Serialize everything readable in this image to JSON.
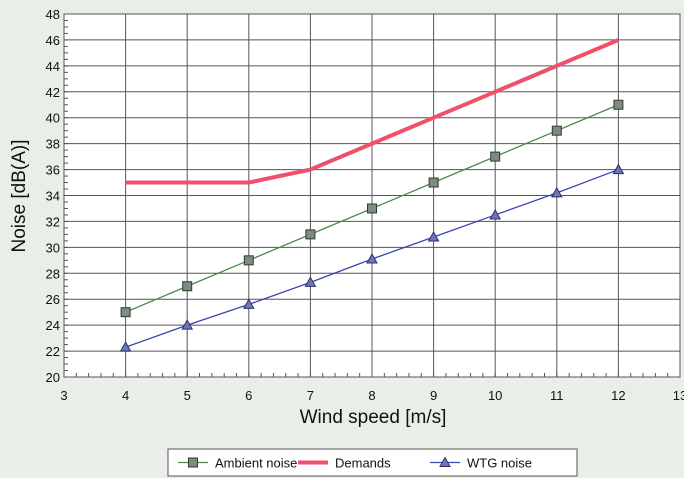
{
  "chart_data": {
    "type": "line",
    "xlabel": "Wind speed [m/s]",
    "ylabel": "Noise [dB(A)]",
    "xlim": [
      3,
      13
    ],
    "ylim": [
      20,
      48
    ],
    "x_ticks": [
      3,
      4,
      5,
      6,
      7,
      8,
      9,
      10,
      11,
      12,
      13
    ],
    "y_ticks": [
      20,
      22,
      24,
      26,
      28,
      30,
      32,
      34,
      36,
      38,
      40,
      42,
      44,
      46,
      48
    ],
    "grid": true,
    "legend_position": "bottom",
    "series": [
      {
        "name": "Ambient noise",
        "color": "#4e8a4e",
        "marker": "square",
        "x": [
          4,
          5,
          6,
          7,
          8,
          9,
          10,
          11,
          12
        ],
        "y": [
          25,
          27,
          29,
          31,
          33,
          35,
          37,
          39,
          41
        ]
      },
      {
        "name": "Demands",
        "color": "#f0506a",
        "marker": "none",
        "x": [
          4,
          5,
          6,
          7,
          8,
          9,
          10,
          11,
          12
        ],
        "y": [
          35,
          35,
          35,
          36,
          38,
          40,
          42,
          44,
          46
        ]
      },
      {
        "name": "WTG noise",
        "color": "#3a45b0",
        "marker": "triangle",
        "x": [
          4,
          5,
          6,
          7,
          8,
          9,
          10,
          11,
          12
        ],
        "y": [
          22.3,
          24,
          25.6,
          27.3,
          29.1,
          30.8,
          32.5,
          34.2,
          36
        ]
      }
    ]
  }
}
